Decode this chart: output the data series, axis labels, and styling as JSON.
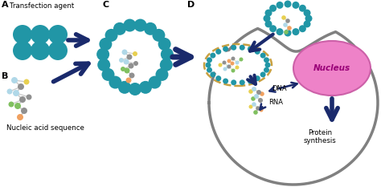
{
  "teal": "#2196A6",
  "dark_navy": "#1a2a6c",
  "gray": "#909090",
  "light_blue": "#b0d8e8",
  "yellow": "#e8d050",
  "green": "#80c060",
  "orange": "#f0a060",
  "nucleus_pink": "#ee82c8",
  "nucleus_edge": "#cc60a8",
  "cell_border": "#808080",
  "bg": "#ffffff",
  "label_A": "A",
  "label_B": "B",
  "label_C": "C",
  "label_D": "D",
  "text_transfection": "Transfection agent",
  "text_nucleic": "Nucleic acid sequence",
  "text_nucleus": "Nucleus",
  "text_dna": "DNA",
  "text_rna": "RNA",
  "text_protein": "Protein\nsynthesis"
}
